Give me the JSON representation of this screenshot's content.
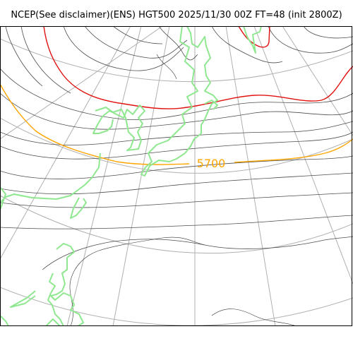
{
  "title": "NCEP(See disclaimer)(ENS) HGT500 2025/11/30 00Z FT=48 (init 2800Z)",
  "contour_label": "5700",
  "colors": {
    "contour": "#4d4d4d",
    "contour_5700": "#ffa500",
    "contour_5400": "#e0120f",
    "coastline": "#8fe88f",
    "graticule": "#b0b0b0",
    "border": "#000000"
  }
}
